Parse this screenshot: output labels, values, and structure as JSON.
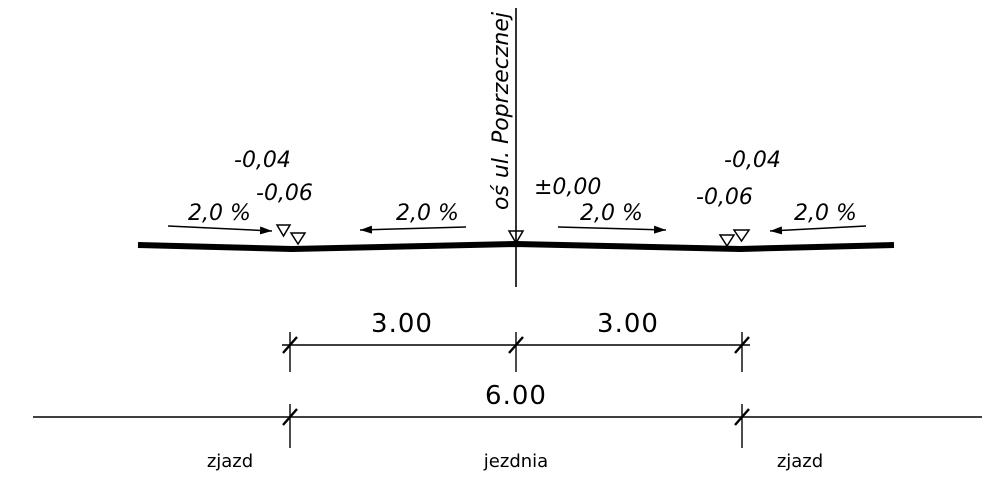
{
  "axis_label": "oś ul. Poprzecznej",
  "elevations": {
    "center": "±0,00",
    "left_upper": "-0,04",
    "left_lower": "-0,06",
    "right_upper": "-0,04",
    "right_lower": "-0,06"
  },
  "slopes": {
    "far_left": "2,0 %",
    "inner_left": "2,0 %",
    "inner_right": "2,0 %",
    "far_right": "2,0 %"
  },
  "dimensions": {
    "left_half": "3.00",
    "right_half": "3.00",
    "total": "6.00"
  },
  "zones": {
    "left": "zjazd",
    "center": "jezdnia",
    "right": "zjazd"
  },
  "colors": {
    "line": "#000000",
    "background": "#ffffff"
  }
}
